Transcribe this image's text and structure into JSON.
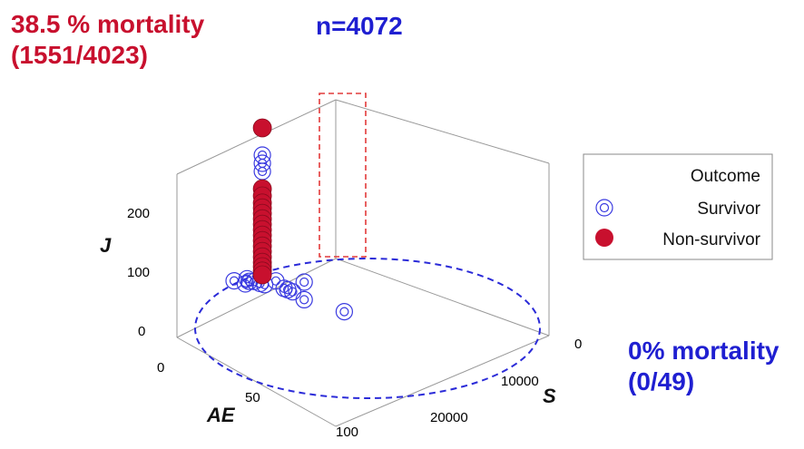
{
  "annotations": {
    "top_left_line1": "38.5 % mortality",
    "top_left_line2": "(1551/4023)",
    "top_center": "n=4072",
    "bottom_right_line1": "0% mortality",
    "bottom_right_line2": "(0/49)"
  },
  "colors": {
    "survivor": "#3a3ae0",
    "non_survivor": "#c8102e",
    "dashed_red": "#e23a3a",
    "dashed_blue": "#2b2bd8",
    "annotation_red": "#c8102e",
    "annotation_blue": "#1f1fd1"
  },
  "chart_data": {
    "type": "scatter",
    "projection": "3d",
    "title": "",
    "axes": {
      "J": {
        "label": "J",
        "ticks": [
          "0",
          "100",
          "200"
        ],
        "range": [
          0,
          300
        ]
      },
      "AE": {
        "label": "AE",
        "ticks": [
          "0",
          "50",
          "100"
        ],
        "range": [
          0,
          100
        ]
      },
      "S": {
        "label": "S",
        "ticks": [
          "0",
          "10000",
          "20000"
        ],
        "range": [
          0,
          25000
        ]
      }
    },
    "grid": false,
    "legend": {
      "position": "right",
      "title": "Outcome",
      "entries": [
        "Survivor",
        "Non-survivor"
      ]
    },
    "series": [
      {
        "name": "Survivor",
        "marker": "double-ring",
        "points": [
          {
            "ae": 58,
            "s": 6200,
            "j": 8
          },
          {
            "ae": 48,
            "s": 5000,
            "j": 8
          },
          {
            "ae": 45,
            "s": 4800,
            "j": 8
          },
          {
            "ae": 43,
            "s": 4700,
            "j": 8
          },
          {
            "ae": 36,
            "s": 5100,
            "j": 8
          },
          {
            "ae": 34,
            "s": 5100,
            "j": 8
          },
          {
            "ae": 31,
            "s": 5000,
            "j": 8
          },
          {
            "ae": 30,
            "s": 5300,
            "j": 8
          },
          {
            "ae": 34,
            "s": 3400,
            "j": 8
          },
          {
            "ae": 40,
            "s": 1800,
            "j": 8
          },
          {
            "ae": 32,
            "s": 6200,
            "j": 8
          },
          {
            "ae": 27,
            "s": 4800,
            "j": 8
          },
          {
            "ae": 27,
            "s": 6200,
            "j": 8
          },
          {
            "ae": 77,
            "s": 6500,
            "j": 8
          },
          {
            "ae": 35,
            "s": 5100,
            "j": 215
          },
          {
            "ae": 35,
            "s": 5100,
            "j": 230
          },
          {
            "ae": 35,
            "s": 5100,
            "j": 245
          }
        ]
      },
      {
        "name": "Non-survivor",
        "marker": "filled-circle",
        "points": [
          {
            "ae": 35,
            "s": 5100,
            "j": 295
          },
          {
            "ae": 35,
            "s": 5100,
            "j": 183
          },
          {
            "ae": 35,
            "s": 5100,
            "j": 170
          },
          {
            "ae": 35,
            "s": 5100,
            "j": 157
          },
          {
            "ae": 35,
            "s": 5100,
            "j": 148
          },
          {
            "ae": 35,
            "s": 5100,
            "j": 138
          },
          {
            "ae": 35,
            "s": 5100,
            "j": 128
          },
          {
            "ae": 35,
            "s": 5100,
            "j": 118
          },
          {
            "ae": 35,
            "s": 5100,
            "j": 108
          },
          {
            "ae": 35,
            "s": 5100,
            "j": 98
          },
          {
            "ae": 35,
            "s": 5100,
            "j": 88
          },
          {
            "ae": 35,
            "s": 5100,
            "j": 78
          },
          {
            "ae": 35,
            "s": 5100,
            "j": 68
          },
          {
            "ae": 35,
            "s": 5100,
            "j": 58
          },
          {
            "ae": 35,
            "s": 5100,
            "j": 48
          },
          {
            "ae": 35,
            "s": 5100,
            "j": 40
          },
          {
            "ae": 35,
            "s": 5100,
            "j": 32
          },
          {
            "ae": 35,
            "s": 5100,
            "j": 25
          }
        ]
      }
    ]
  }
}
